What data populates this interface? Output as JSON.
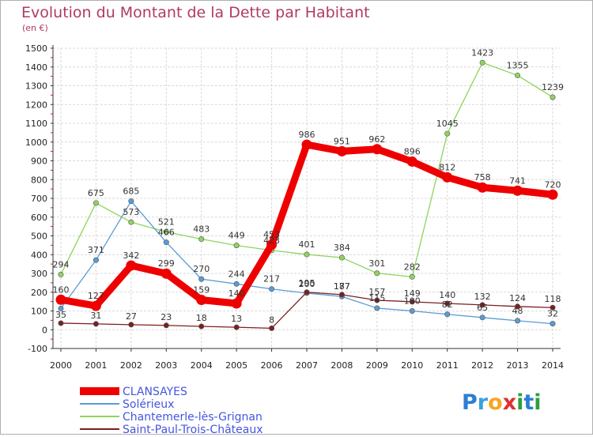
{
  "chart_data": {
    "type": "line",
    "title": "Evolution du Montant de la Dette par Habitant",
    "subtitle": "(en €)",
    "categories": [
      "2000",
      "2001",
      "2002",
      "2003",
      "2004",
      "2005",
      "2006",
      "2007",
      "2008",
      "2009",
      "2010",
      "2011",
      "2012",
      "2013",
      "2014"
    ],
    "ylim": [
      -100,
      1500
    ],
    "yticks": [
      -100,
      0,
      100,
      200,
      300,
      400,
      500,
      600,
      700,
      800,
      900,
      1000,
      1100,
      1200,
      1300,
      1400,
      1500
    ],
    "grid": true,
    "legend_position": "bottom-left",
    "series": [
      {
        "name": "CLANSAYES",
        "color": "#ee0000",
        "values": [
          160,
          127,
          342,
          299,
          159,
          140,
          453,
          986,
          951,
          962,
          896,
          812,
          758,
          741,
          720
        ],
        "labels": [
          "160",
          "127",
          "342",
          "299",
          "159",
          "140",
          "453",
          "986",
          "951",
          "962",
          "896",
          "812",
          "758",
          "741",
          "720"
        ]
      },
      {
        "name": "Solérieux",
        "color": "#5b9bd5",
        "values": [
          113,
          371,
          685,
          466,
          270,
          244,
          217,
          195,
          177,
          115,
          100,
          82,
          65,
          48,
          32
        ],
        "labels": [
          "",
          "371",
          "685",
          "466",
          "270",
          "244",
          "217",
          "195",
          "177",
          "115",
          "100",
          "82",
          "65",
          "48",
          "32"
        ]
      },
      {
        "name": "Chantemerle-lès-Grignan",
        "color": "#8fd45e",
        "values": [
          294,
          675,
          573,
          521,
          483,
          449,
          423,
          401,
          384,
          301,
          282,
          1045,
          1423,
          1355,
          1239
        ],
        "labels": [
          "294",
          "675",
          "573",
          "521",
          "483",
          "449",
          "423",
          "401",
          "384",
          "301",
          "282",
          "1045",
          "1423",
          "1355",
          "1239"
        ]
      },
      {
        "name": "Saint-Paul-Trois-Châteaux",
        "color": "#7a2020",
        "values": [
          35,
          31,
          27,
          23,
          18,
          13,
          8,
          200,
          187,
          157,
          149,
          140,
          132,
          124,
          118
        ],
        "labels": [
          "35",
          "31",
          "27",
          "23",
          "18",
          "13",
          "8",
          "200",
          "187",
          "157",
          "149",
          "140",
          "132",
          "124",
          "118"
        ]
      }
    ]
  },
  "legend": {
    "items": [
      "CLANSAYES",
      "Solérieux",
      "Chantemerle-lès-Grignan",
      "Saint-Paul-Trois-Châteaux"
    ],
    "text_color": "#4455dd"
  },
  "logo": {
    "text": "Proxiti",
    "letters": [
      {
        "ch": "P",
        "color": "#2a7fd4"
      },
      {
        "ch": "r",
        "color": "#3aa0e0"
      },
      {
        "ch": "o",
        "color": "#f5a623"
      },
      {
        "ch": "x",
        "color": "#e03030"
      },
      {
        "ch": "i",
        "color": "#2e9e3e"
      },
      {
        "ch": "t",
        "color": "#2a7fd4"
      },
      {
        "ch": "i",
        "color": "#2e9e3e"
      }
    ]
  }
}
